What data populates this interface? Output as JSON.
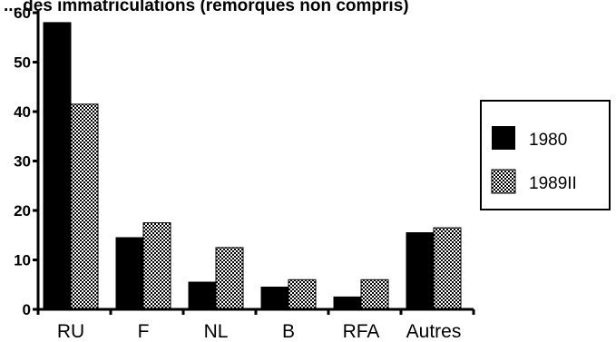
{
  "chart_data": {
    "type": "bar",
    "title": "... des immatriculations (remorques non compris)",
    "categories": [
      "RU",
      "F",
      "NL",
      "B",
      "RFA",
      "Autres"
    ],
    "series": [
      {
        "name": "1980",
        "values": [
          58,
          14.5,
          5.5,
          4.5,
          2.5,
          15.5
        ],
        "color": "#000000",
        "pattern": "solid"
      },
      {
        "name": "1989II",
        "values": [
          41.5,
          17.5,
          12.5,
          6,
          6,
          16.5
        ],
        "color": "#000000",
        "pattern": "dotted"
      }
    ],
    "yticks": [
      0,
      10,
      20,
      30,
      40,
      50,
      60
    ],
    "ylim": [
      0,
      60
    ],
    "xlabel": "",
    "ylabel": "",
    "grid": false,
    "legend": "right"
  }
}
